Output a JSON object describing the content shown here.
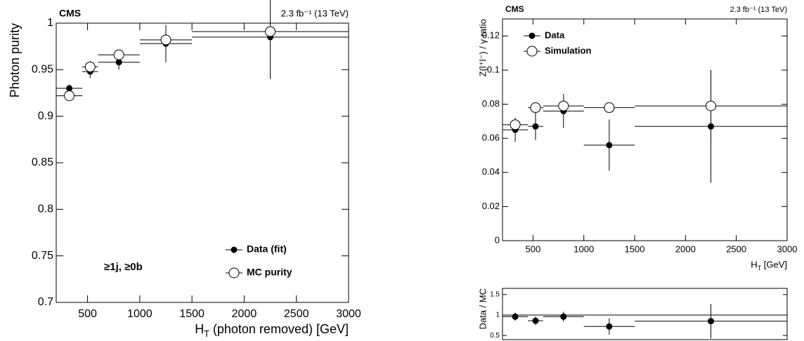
{
  "chart_data": [
    {
      "type": "errorbar",
      "title": "CMS",
      "subtitle": "2.3 fb⁻¹ (13 TeV)",
      "x_label": "HT (photon removed) [GeV]",
      "y_label": "Photon purity",
      "annotation": "≥1j, ≥0b",
      "x": [
        325,
        525,
        800,
        1250,
        2250
      ],
      "bins": [
        200,
        450,
        600,
        1000,
        1500,
        3000
      ],
      "series": [
        {
          "name": "Data (fit)",
          "marker": "filled",
          "color": "#000000",
          "values": [
            0.93,
            0.948,
            0.958,
            0.978,
            0.985
          ],
          "errors": [
            0.004,
            0.007,
            0.008,
            0.02,
            0.045
          ]
        },
        {
          "name": "MC purity",
          "marker": "open",
          "color": "#000000",
          "values": [
            0.922,
            0.953,
            0.966,
            0.982,
            0.991
          ],
          "errors": [
            0.004,
            0.006,
            0.005,
            0.008,
            0.004
          ]
        }
      ],
      "xlim": [
        200,
        3000
      ],
      "ylim": [
        0.7,
        1.0
      ],
      "xticks": [
        500,
        1000,
        1500,
        2000,
        2500,
        3000
      ],
      "yticks": [
        0.7,
        0.75,
        0.8,
        0.85,
        0.9,
        0.95,
        1
      ],
      "legend": "lower right"
    },
    {
      "type": "errorbar",
      "title": "CMS",
      "subtitle": "2.3 fb⁻¹ (13 TeV)",
      "x_label": "HT [GeV]",
      "y_label": "Z(l⁺l⁻) / γ ratio",
      "x": [
        325,
        525,
        800,
        1250,
        2250
      ],
      "bins": [
        200,
        450,
        600,
        1000,
        1500,
        3000
      ],
      "series": [
        {
          "name": "Data",
          "marker": "filled",
          "color": "#000000",
          "values": [
            0.065,
            0.067,
            0.076,
            0.056,
            0.067
          ],
          "errors": [
            0.007,
            0.008,
            0.01,
            0.015,
            0.033
          ]
        },
        {
          "name": "Simulation",
          "marker": "open",
          "color": "#000000",
          "values": [
            0.068,
            0.078,
            0.079,
            0.078,
            0.079
          ],
          "errors": [
            0.003,
            0.002,
            0.003,
            0.002,
            0.021
          ]
        }
      ],
      "xlim": [
        200,
        3000
      ],
      "ylim": [
        0,
        0.13
      ],
      "xticks": [
        500,
        1000,
        1500,
        2000,
        2500,
        3000
      ],
      "yticks": [
        0,
        0.02,
        0.04,
        0.06,
        0.08,
        0.1,
        0.12
      ],
      "legend": "upper left"
    },
    {
      "type": "errorbar",
      "y_label": "Data / MC",
      "x": [
        325,
        525,
        800,
        1250,
        2250
      ],
      "bins": [
        200,
        450,
        600,
        1000,
        1500,
        3000
      ],
      "series": [
        {
          "marker": "filled",
          "color": "#000000",
          "values": [
            0.96,
            0.86,
            0.96,
            0.72,
            0.85
          ],
          "errors": [
            0.1,
            0.1,
            0.12,
            0.2,
            0.42
          ]
        }
      ],
      "reference_line": 1,
      "xlim": [
        200,
        3000
      ],
      "ylim": [
        0.4,
        1.65
      ],
      "yticks": [
        0.5,
        1,
        1.5
      ]
    }
  ]
}
